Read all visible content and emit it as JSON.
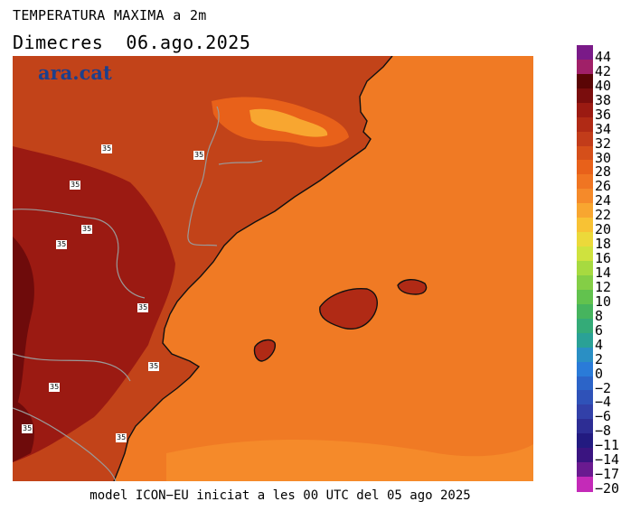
{
  "header": {
    "title": "TEMPERATURA MAXIMA a 2m",
    "date": "Dimecres  06.ago.2025"
  },
  "logo": "ara.cat",
  "footer": "model ICON−EU iniciat a les 00 UTC del 05 ago 2025",
  "isotherm_label": "35",
  "colorbar": {
    "labels": [
      "44",
      "42",
      "40",
      "38",
      "36",
      "34",
      "32",
      "30",
      "28",
      "26",
      "24",
      "22",
      "20",
      "18",
      "16",
      "14",
      "12",
      "10",
      "8",
      "6",
      "4",
      "2",
      "0",
      "−2",
      "−4",
      "−6",
      "−8",
      "−11",
      "−14",
      "−17",
      "−20"
    ],
    "colors": [
      "#7a1a88",
      "#a02068",
      "#5a0505",
      "#7a0d0d",
      "#9b1a12",
      "#b02a15",
      "#c23c1a",
      "#d54f1a",
      "#e8611a",
      "#f07522",
      "#f58a2a",
      "#f8a630",
      "#f8c234",
      "#ecd93a",
      "#cfe23e",
      "#a7da40",
      "#84ce46",
      "#62c24e",
      "#46b45e",
      "#34ab78",
      "#2aa196",
      "#2a8fc4",
      "#2a7bd8",
      "#2c64c8",
      "#2f52b8",
      "#3240a8",
      "#2d2d94",
      "#221a80",
      "#3a1480",
      "#6a1a90",
      "#c42ab8"
    ]
  },
  "map_colors": {
    "sea": "#f07a24",
    "sea_south": "#f58a2a",
    "land": "#c24319",
    "land_hot": "#9b1a12",
    "land_very_hot": "#6e0b0b",
    "mountain": "#e8611a",
    "peaks": "#f8a630",
    "islands": "#b02a15",
    "coast": "#101010",
    "border": "#9a9a9a"
  }
}
